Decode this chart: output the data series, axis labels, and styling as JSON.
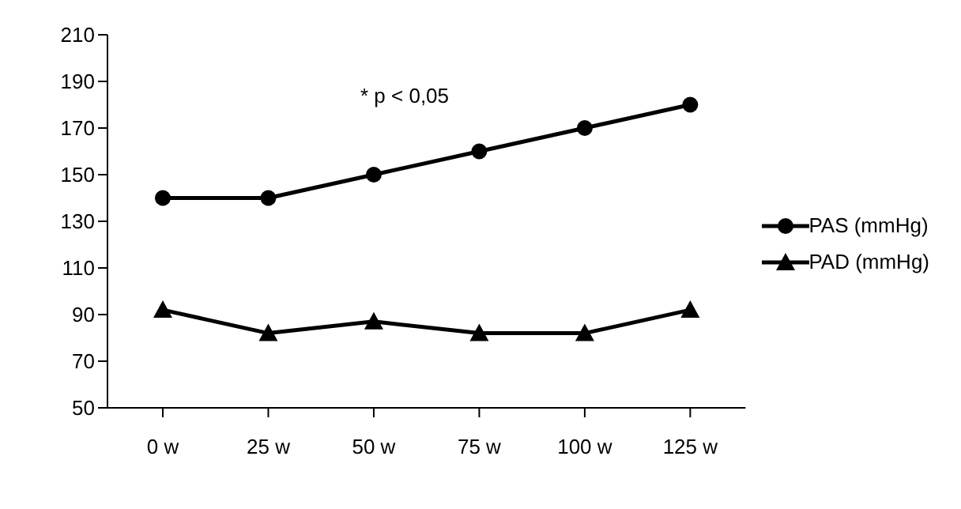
{
  "chart_data": {
    "type": "line",
    "categories": [
      "0 w",
      "25 w",
      "50 w",
      "75 w",
      "100 w",
      "125 w"
    ],
    "series": [
      {
        "name": "PAS (mmHg)",
        "color": "#000000",
        "marker": "circle",
        "values": [
          140,
          140,
          150,
          160,
          170,
          180
        ]
      },
      {
        "name": "PAD (mmHg)",
        "color": "#000000",
        "marker": "triangle",
        "values": [
          92,
          82,
          87,
          82,
          82,
          92
        ]
      }
    ],
    "ylim": [
      50,
      210
    ],
    "yticks": [
      50,
      70,
      90,
      110,
      130,
      150,
      170,
      190,
      210
    ],
    "grid": false,
    "legend": "right",
    "line_style": "solid",
    "annotations": [
      "* p < 0,05"
    ]
  }
}
